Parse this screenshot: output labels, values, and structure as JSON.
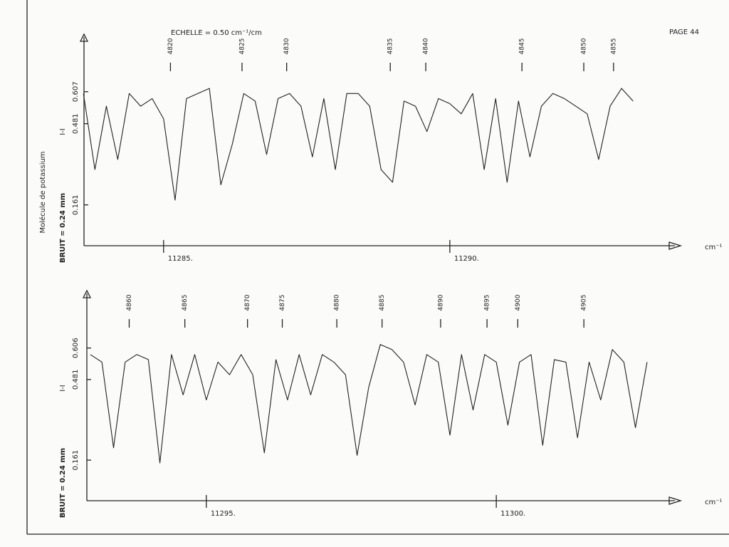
{
  "header": {
    "title": "ECHELLE = 0.50 cm⁻¹/cm",
    "page": "PAGE 44",
    "side_label": "Molécule de potassium"
  },
  "chart_data": [
    {
      "type": "line",
      "ylabel": "BRUIT =  0.24 mm",
      "y_marker": "I-I",
      "xlabel": "cm⁻¹",
      "xlim": [
        11283.61,
        11293.77
      ],
      "xticks": [
        {
          "value": 11285,
          "label": "11285."
        },
        {
          "value": 11290,
          "label": "11290."
        }
      ],
      "ylim": [
        0,
        0.8
      ],
      "yticks": [
        0.607,
        0.481,
        0.161
      ],
      "x": [
        11283.6,
        11283.8,
        11284.0,
        11284.2,
        11284.4,
        11284.6,
        11284.8,
        11285.0,
        11285.2,
        11285.4,
        11285.6,
        11285.8,
        11286.0,
        11286.2,
        11286.4,
        11286.6,
        11286.8,
        11287.0,
        11287.2,
        11287.4,
        11287.6,
        11287.8,
        11288.0,
        11288.2,
        11288.4,
        11288.6,
        11288.8,
        11289.0,
        11289.2,
        11289.4,
        11289.6,
        11289.8,
        11290.0,
        11290.2,
        11290.4,
        11290.6,
        11290.8,
        11291.0,
        11291.2,
        11291.4,
        11291.6,
        11291.8,
        11292.0,
        11292.2,
        11292.4,
        11292.6,
        11292.8,
        11293.0,
        11293.2
      ],
      "series": [
        {
          "color": "#222222",
          "values": [
            0.6,
            0.3,
            0.55,
            0.34,
            0.6,
            0.55,
            0.58,
            0.5,
            0.18,
            0.58,
            0.6,
            0.62,
            0.24,
            0.4,
            0.6,
            0.57,
            0.36,
            0.58,
            0.6,
            0.55,
            0.35,
            0.58,
            0.3,
            0.6,
            0.6,
            0.55,
            0.3,
            0.25,
            0.57,
            0.55,
            0.45,
            0.58,
            0.56,
            0.52,
            0.6,
            0.3,
            0.58,
            0.25,
            0.57,
            0.35,
            0.55,
            0.6,
            0.58,
            0.55,
            0.52,
            0.34,
            0.55,
            0.62,
            0.57
          ]
        }
      ],
      "annotations": [
        {
          "x": 11285.12,
          "label": "4820"
        },
        {
          "x": 11286.37,
          "label": "4825"
        },
        {
          "x": 11287.15,
          "label": "4830"
        },
        {
          "x": 11288.96,
          "label": "4835"
        },
        {
          "x": 11289.58,
          "label": "4840"
        },
        {
          "x": 11291.26,
          "label": "4845"
        },
        {
          "x": 11292.34,
          "label": "4850"
        },
        {
          "x": 11292.86,
          "label": "4855"
        }
      ]
    },
    {
      "type": "line",
      "ylabel": "BRUIT =  0.24 mm",
      "y_marker": "I-I",
      "xlabel": "cm⁻¹",
      "xlim": [
        11292.94,
        11302.92
      ],
      "xticks": [
        {
          "value": 11295,
          "label": "11295."
        },
        {
          "value": 11300,
          "label": "11300."
        }
      ],
      "ylim": [
        0,
        0.8
      ],
      "yticks": [
        0.606,
        0.481,
        0.161
      ],
      "x": [
        11293.0,
        11293.2,
        11293.4,
        11293.6,
        11293.8,
        11294.0,
        11294.2,
        11294.4,
        11294.6,
        11294.8,
        11295.0,
        11295.2,
        11295.4,
        11295.6,
        11295.8,
        11296.0,
        11296.2,
        11296.4,
        11296.6,
        11296.8,
        11297.0,
        11297.2,
        11297.4,
        11297.6,
        11297.8,
        11298.0,
        11298.2,
        11298.4,
        11298.6,
        11298.8,
        11299.0,
        11299.2,
        11299.4,
        11299.6,
        11299.8,
        11300.0,
        11300.2,
        11300.4,
        11300.6,
        11300.8,
        11301.0,
        11301.2,
        11301.4,
        11301.6,
        11301.8,
        11302.0,
        11302.2,
        11302.4,
        11302.6
      ],
      "series": [
        {
          "color": "#222222",
          "values": [
            0.58,
            0.55,
            0.21,
            0.55,
            0.58,
            0.56,
            0.15,
            0.58,
            0.42,
            0.58,
            0.4,
            0.55,
            0.5,
            0.58,
            0.5,
            0.19,
            0.56,
            0.4,
            0.58,
            0.42,
            0.58,
            0.55,
            0.5,
            0.18,
            0.45,
            0.62,
            0.6,
            0.55,
            0.38,
            0.58,
            0.55,
            0.26,
            0.58,
            0.36,
            0.58,
            0.55,
            0.3,
            0.55,
            0.58,
            0.22,
            0.56,
            0.55,
            0.25,
            0.55,
            0.4,
            0.6,
            0.55,
            0.29,
            0.55
          ]
        }
      ],
      "annotations": [
        {
          "x": 11293.67,
          "label": "4860"
        },
        {
          "x": 11294.63,
          "label": "4865"
        },
        {
          "x": 11295.71,
          "label": "4870"
        },
        {
          "x": 11296.31,
          "label": "4875"
        },
        {
          "x": 11297.25,
          "label": "4880"
        },
        {
          "x": 11298.03,
          "label": "4885"
        },
        {
          "x": 11299.04,
          "label": "4890"
        },
        {
          "x": 11299.84,
          "label": "4895"
        },
        {
          "x": 11300.37,
          "label": "4900"
        },
        {
          "x": 11301.51,
          "label": "4905"
        }
      ]
    }
  ]
}
